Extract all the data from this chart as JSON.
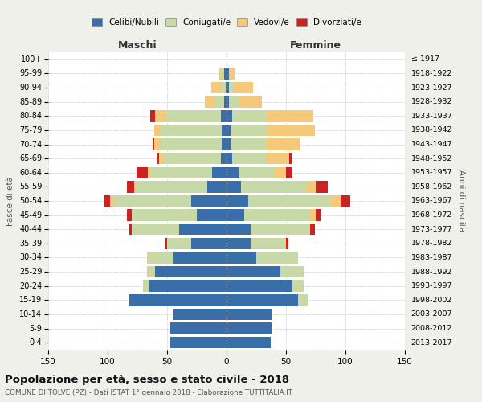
{
  "age_groups": [
    "0-4",
    "5-9",
    "10-14",
    "15-19",
    "20-24",
    "25-29",
    "30-34",
    "35-39",
    "40-44",
    "45-49",
    "50-54",
    "55-59",
    "60-64",
    "65-69",
    "70-74",
    "75-79",
    "80-84",
    "85-89",
    "90-94",
    "95-99",
    "100+"
  ],
  "birth_years": [
    "2013-2017",
    "2008-2012",
    "2003-2007",
    "1998-2002",
    "1993-1997",
    "1988-1992",
    "1983-1987",
    "1978-1982",
    "1973-1977",
    "1968-1972",
    "1963-1967",
    "1958-1962",
    "1953-1957",
    "1948-1952",
    "1943-1947",
    "1938-1942",
    "1933-1937",
    "1928-1932",
    "1923-1927",
    "1918-1922",
    "≤ 1917"
  ],
  "maschi": {
    "celibi": [
      47,
      47,
      45,
      82,
      65,
      60,
      45,
      30,
      40,
      25,
      30,
      16,
      12,
      5,
      4,
      4,
      5,
      2,
      1,
      2,
      0
    ],
    "coniugati": [
      0,
      0,
      0,
      0,
      5,
      5,
      20,
      20,
      40,
      55,
      65,
      60,
      52,
      48,
      52,
      52,
      45,
      8,
      4,
      2,
      0
    ],
    "vedovi": [
      0,
      0,
      0,
      0,
      0,
      2,
      2,
      0,
      0,
      0,
      3,
      2,
      2,
      4,
      5,
      5,
      10,
      8,
      8,
      2,
      0
    ],
    "divorziati": [
      0,
      0,
      0,
      0,
      0,
      0,
      0,
      2,
      2,
      4,
      5,
      6,
      10,
      1,
      1,
      0,
      4,
      0,
      0,
      0,
      0
    ]
  },
  "femmine": {
    "nubili": [
      37,
      38,
      38,
      60,
      55,
      45,
      25,
      20,
      20,
      15,
      18,
      12,
      10,
      5,
      4,
      4,
      5,
      2,
      2,
      2,
      0
    ],
    "coniugate": [
      0,
      0,
      0,
      8,
      10,
      20,
      35,
      30,
      50,
      55,
      70,
      55,
      30,
      28,
      30,
      30,
      28,
      8,
      5,
      0,
      0
    ],
    "vedove": [
      0,
      0,
      0,
      0,
      0,
      0,
      0,
      0,
      0,
      5,
      8,
      8,
      10,
      20,
      28,
      40,
      40,
      20,
      15,
      5,
      0
    ],
    "divorziate": [
      0,
      0,
      0,
      0,
      0,
      0,
      0,
      2,
      4,
      4,
      8,
      10,
      5,
      2,
      0,
      0,
      0,
      0,
      0,
      0,
      0
    ]
  },
  "colors": {
    "celibi_nubili": "#3a6ea8",
    "coniugati": "#c8d9a8",
    "vedovi": "#f5c97a",
    "divorziati": "#cc2222"
  },
  "xlim": 150,
  "title_main": "Popolazione per età, sesso e stato civile - 2018",
  "title_sub": "COMUNE DI TOLVE (PZ) - Dati ISTAT 1° gennaio 2018 - Elaborazione TUTTITALIA.IT",
  "ylabel_left": "Fasce di età",
  "ylabel_right": "Anni di nascita",
  "legend_labels": [
    "Celibi/Nubili",
    "Coniugati/e",
    "Vedovi/e",
    "Divorziati/e"
  ],
  "bg_color": "#f0f0eb",
  "plot_bg": "#ffffff"
}
